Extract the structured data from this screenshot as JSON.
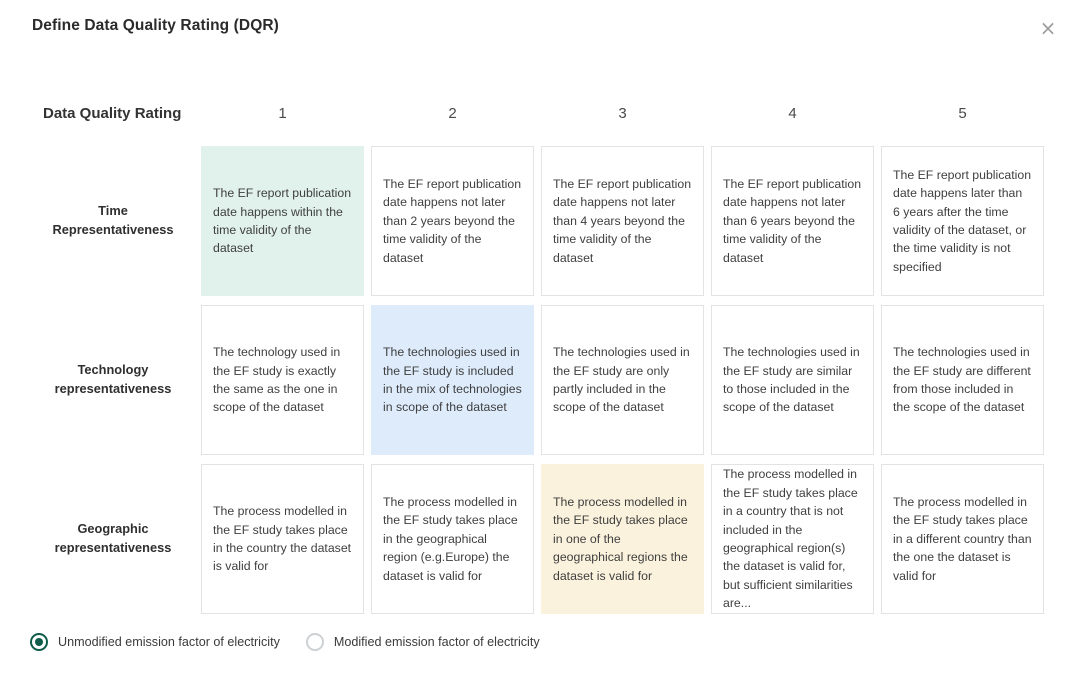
{
  "modal": {
    "title": "Define Data Quality Rating (DQR)",
    "close_icon": "×"
  },
  "table": {
    "corner_label": "Data Quality Rating",
    "rating_columns": [
      "1",
      "2",
      "3",
      "4",
      "5"
    ],
    "rows": [
      {
        "label": "Time Representativeness",
        "highlight": {
          "column": 1,
          "color": "#e1f1eb"
        },
        "cells": [
          "The EF report publication date happens within the time validity of the dataset",
          "The EF report publication date happens not later than 2 years beyond the time validity of the dataset",
          "The EF report publication date happens not later than 4 years beyond the time validity of the dataset",
          "The EF report publication date happens not later than 6 years beyond the time validity of the dataset",
          "The EF report publication date happens later than 6 years after the time validity of the dataset, or the time validity is not specified"
        ]
      },
      {
        "label": "Technology representativeness",
        "highlight": {
          "column": 2,
          "color": "#ddebfb"
        },
        "cells": [
          "The technology used in the EF study is exactly the same as the one in scope of the dataset",
          "The technologies used in the EF study is included in the mix of technologies in scope of the dataset",
          "The technologies used in the EF study are only partly included in the scope of the dataset",
          "The technologies used in the EF study are similar to those included in the scope of the dataset",
          "The technologies used in the EF study are different from those included in the scope of the dataset"
        ]
      },
      {
        "label": "Geographic representativeness",
        "highlight": {
          "column": 3,
          "color": "#faf2dc"
        },
        "cells": [
          "The process modelled in the EF study takes place in the country the dataset is valid for",
          "The process modelled in the EF study takes place in the geographical region (e.g.Europe) the dataset is valid for",
          "The process modelled in the EF study takes place in one of the geographical regions the dataset is valid for",
          "The process modelled in the EF study takes place in a country that is not included in the geographical region(s) the dataset is valid for, but sufficient similarities are...",
          "The process modelled in the EF study takes place in a different country than the one the dataset is valid for"
        ]
      }
    ]
  },
  "footer": {
    "radio_selected_color": "#0e5c49",
    "options": [
      {
        "label": "Unmodified emission factor of electricity",
        "selected": true
      },
      {
        "label": "Modified emission factor of electricity",
        "selected": false
      }
    ]
  }
}
